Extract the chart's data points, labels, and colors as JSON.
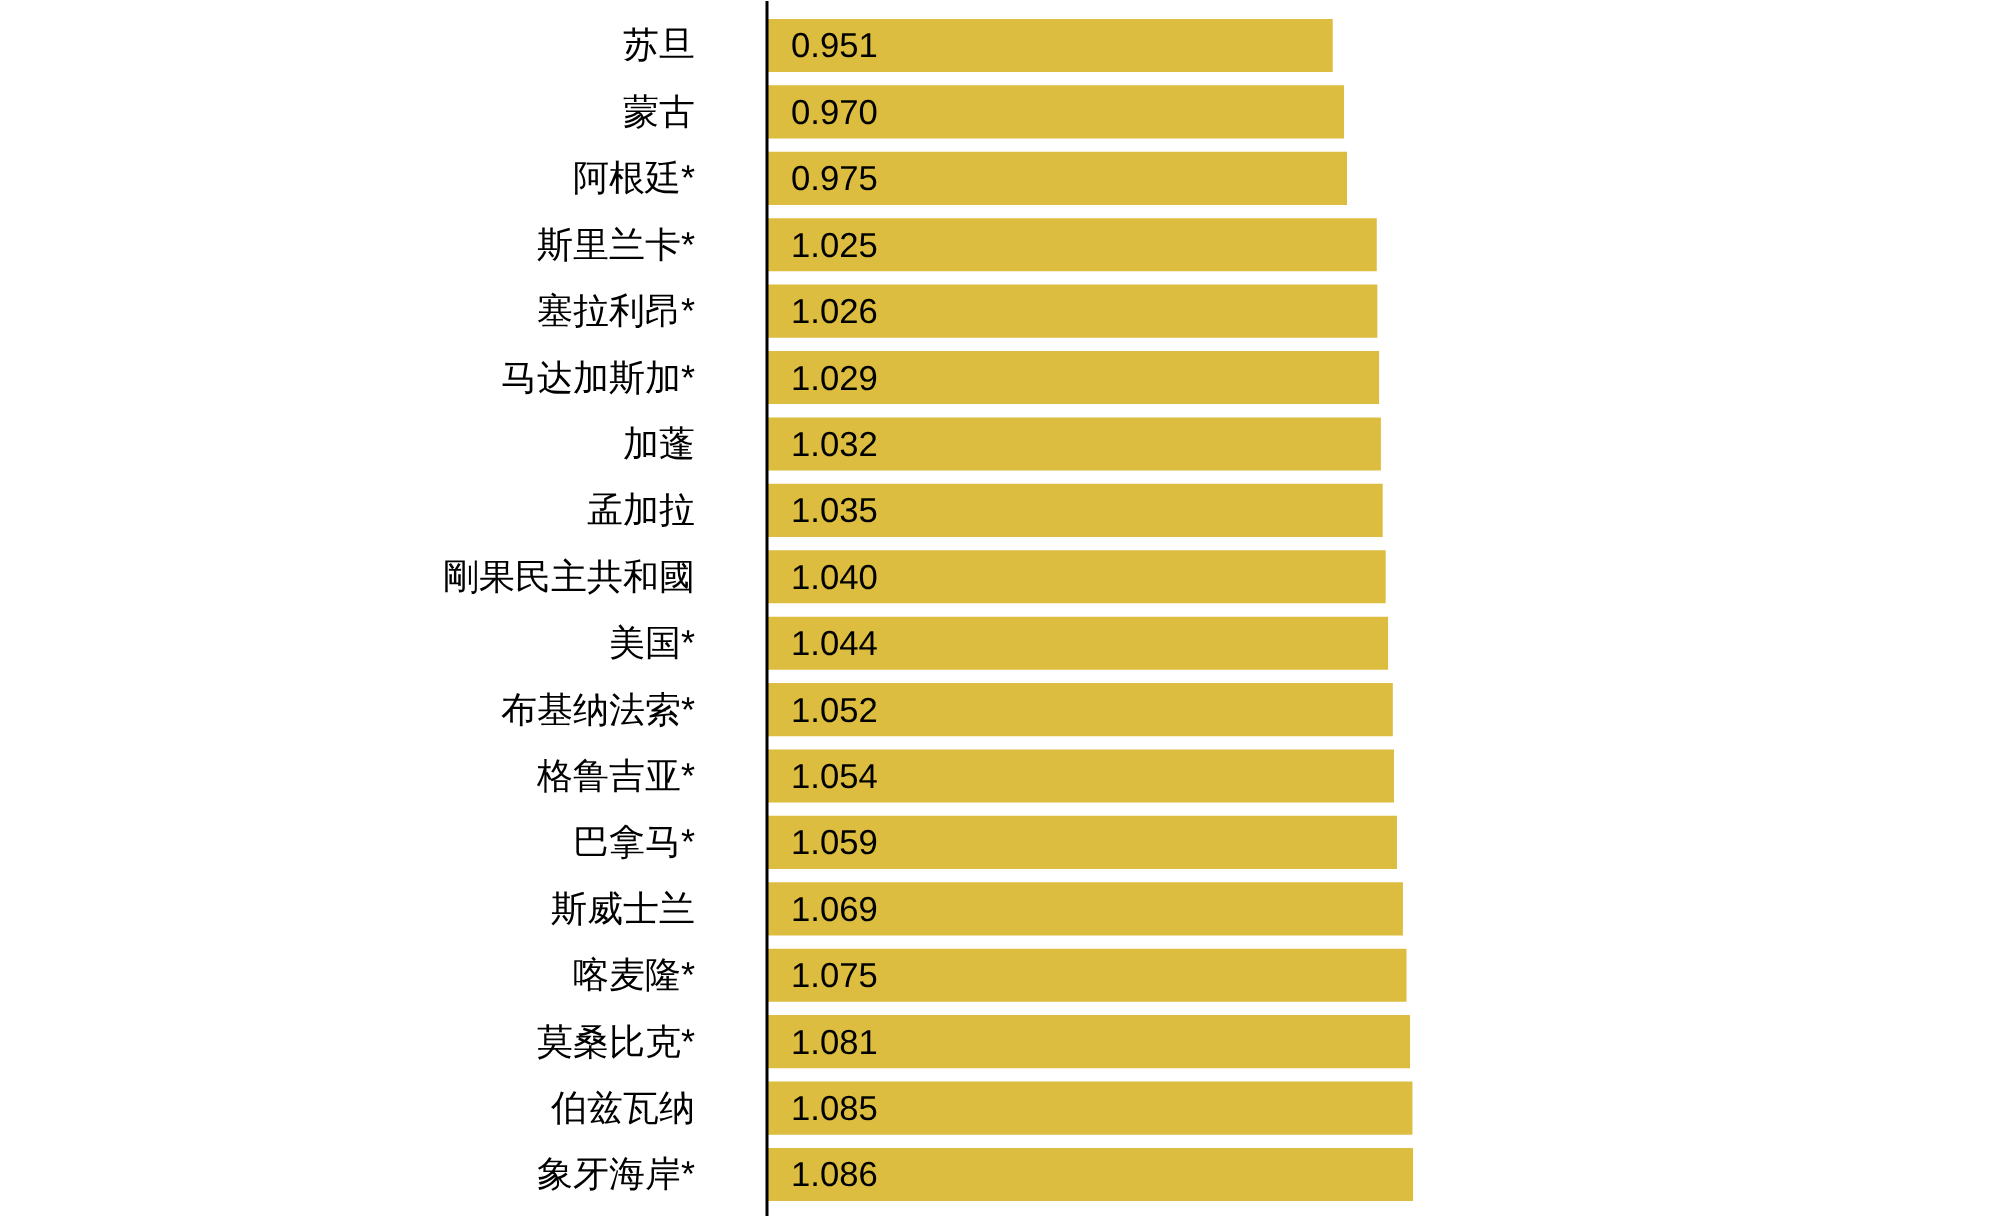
{
  "chart_data": {
    "type": "bar",
    "orientation": "horizontal",
    "categories": [
      "苏旦",
      "蒙古",
      "阿根廷*",
      "斯里兰卡*",
      "塞拉利昂*",
      "马达加斯加*",
      "加蓬",
      "孟加拉",
      "剛果民主共和國",
      "美国*",
      "布基纳法索*",
      "格鲁吉亚*",
      "巴拿马*",
      "斯威士兰",
      "喀麦隆*",
      "莫桑比克*",
      "伯兹瓦纳",
      "象牙海岸*"
    ],
    "values": [
      0.951,
      0.97,
      0.975,
      1.025,
      1.026,
      1.029,
      1.032,
      1.035,
      1.04,
      1.044,
      1.052,
      1.054,
      1.059,
      1.069,
      1.075,
      1.081,
      1.085,
      1.086
    ],
    "value_labels": [
      "0.951",
      "0.970",
      "0.975",
      "1.025",
      "1.026",
      "1.029",
      "1.032",
      "1.035",
      "1.040",
      "1.044",
      "1.052",
      "1.054",
      "1.059",
      "1.069",
      "1.075",
      "1.081",
      "1.085",
      "1.086"
    ],
    "color": "#dcbd3f"
  }
}
